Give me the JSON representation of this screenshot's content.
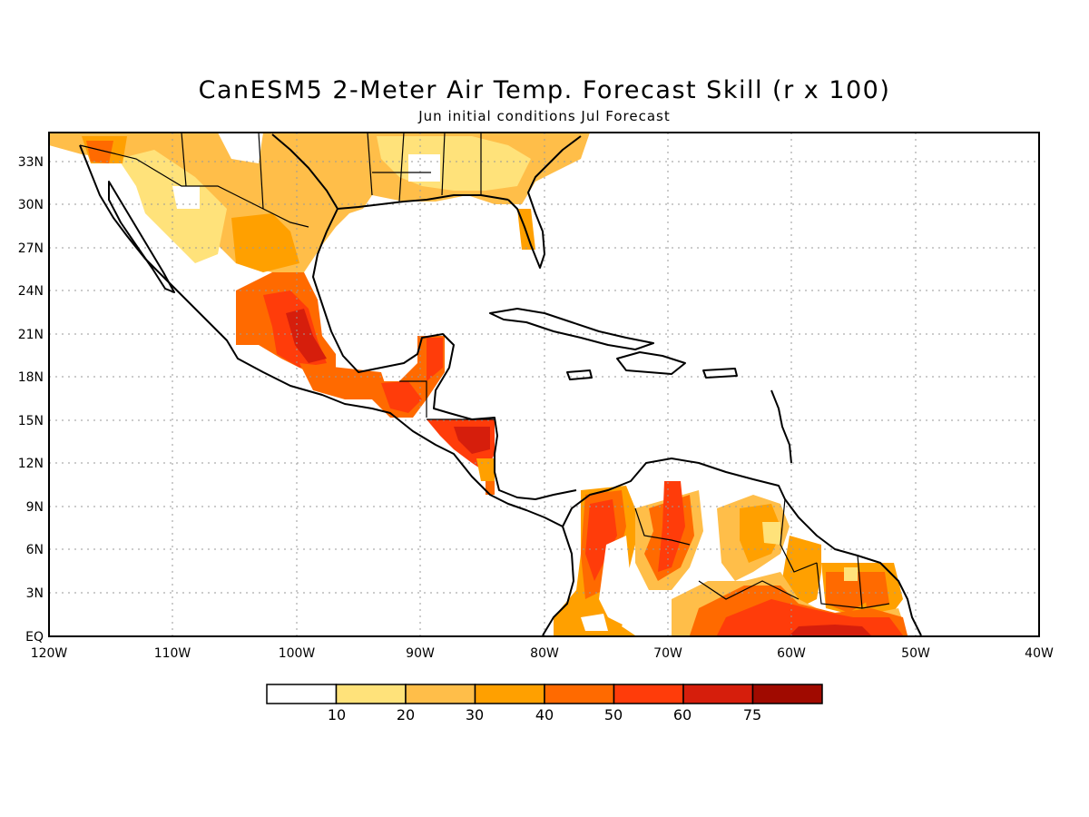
{
  "title": "CanESM5 2-Meter Air Temp. Forecast Skill (r x 100)",
  "subtitle": "Jun initial conditions  Jul Forecast",
  "map": {
    "lat_labels": [
      "33N",
      "30N",
      "27N",
      "24N",
      "21N",
      "18N",
      "15N",
      "12N",
      "9N",
      "6N",
      "3N",
      "EQ"
    ],
    "lon_labels": [
      "120W",
      "110W",
      "100W",
      "90W",
      "80W",
      "70W",
      "60W",
      "50W",
      "40W"
    ],
    "lon_range": [
      -120,
      -40
    ],
    "lat_range": [
      0,
      35
    ],
    "grid": "dotted"
  },
  "colorbar": {
    "labels": [
      "10",
      "20",
      "30",
      "40",
      "50",
      "60",
      "75"
    ],
    "colors": [
      "#ffffff",
      "#ffe27a",
      "#ffbe49",
      "#ffa000",
      "#ff6a00",
      "#ff3c0a",
      "#d61e0c",
      "#a00a00"
    ]
  }
}
